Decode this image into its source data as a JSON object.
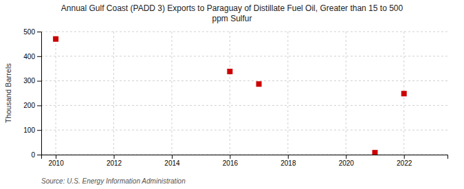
{
  "chart_data": {
    "type": "scatter",
    "title": "Annual Gulf Coast (PADD 3) Exports to Paraguay of Distillate Fuel Oil, Greater than 15 to 500\nppm Sulfur",
    "ylabel": "Thousand Barrels",
    "source": "Source: U.S. Energy Information Administration",
    "x": [
      2010,
      2016,
      2017,
      2021,
      2022
    ],
    "values": [
      470,
      338,
      287,
      8,
      248
    ],
    "color": "#cc0000",
    "marker": "square",
    "xlim": [
      2009.5,
      2023.5
    ],
    "ylim": [
      0,
      500
    ],
    "xticks": [
      2010,
      2012,
      2014,
      2016,
      2018,
      2020,
      2022
    ],
    "yticks": [
      0,
      100,
      200,
      300,
      400,
      500
    ],
    "grid": true
  }
}
